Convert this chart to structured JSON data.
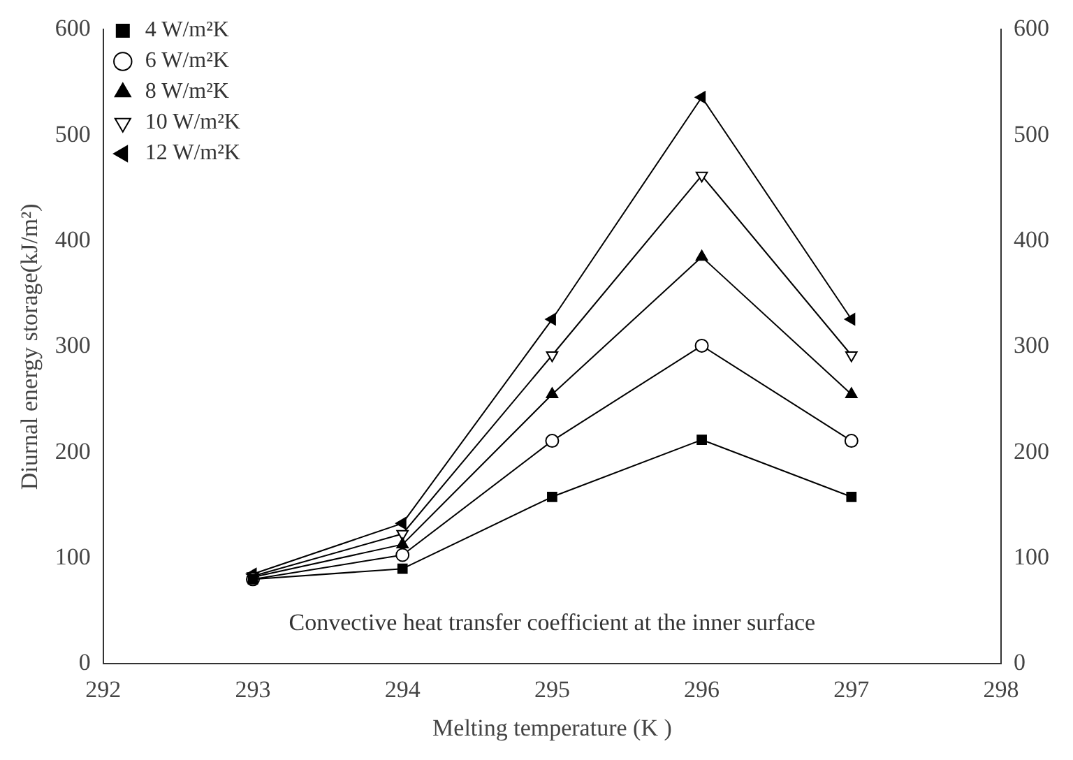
{
  "chart_data": {
    "type": "line",
    "xlabel": "Melting temperature (K )",
    "ylabel": "Diurnal energy storage(kJ/m²)",
    "x": [
      293,
      294,
      295,
      296,
      297
    ],
    "series": [
      {
        "name": "4 W/m²K",
        "color": "#000000",
        "marker": "square",
        "values": [
          80,
          90,
          158,
          212,
          158
        ]
      },
      {
        "name": "6 W/m²K",
        "color": "#000000",
        "marker": "circle",
        "values": [
          80,
          103,
          211,
          301,
          211
        ]
      },
      {
        "name": "8 W/m²K",
        "color": "#000000",
        "marker": "triangle",
        "values": [
          82,
          113,
          255,
          385,
          255
        ]
      },
      {
        "name": "10 W/m²K",
        "color": "#000000",
        "marker": "triangle-down",
        "values": [
          83,
          123,
          292,
          462,
          292
        ]
      },
      {
        "name": "12 W/m²K",
        "color": "#000000",
        "marker": "triangle-left",
        "values": [
          85,
          133,
          326,
          536,
          326
        ]
      }
    ],
    "xlim": [
      292,
      298
    ],
    "xticks": [
      292,
      293,
      294,
      295,
      296,
      297,
      298
    ],
    "ylim": [
      0,
      600
    ],
    "yticks": [
      0,
      100,
      200,
      300,
      400,
      500,
      600
    ],
    "y2lim": [
      0,
      600
    ],
    "y2ticks": [
      0,
      100,
      200,
      300,
      400,
      500,
      600
    ],
    "grid": false,
    "legend": "top left",
    "line_style": "solid",
    "annotations": [
      "Convective heat transfer coefficient at the inner surface"
    ]
  }
}
